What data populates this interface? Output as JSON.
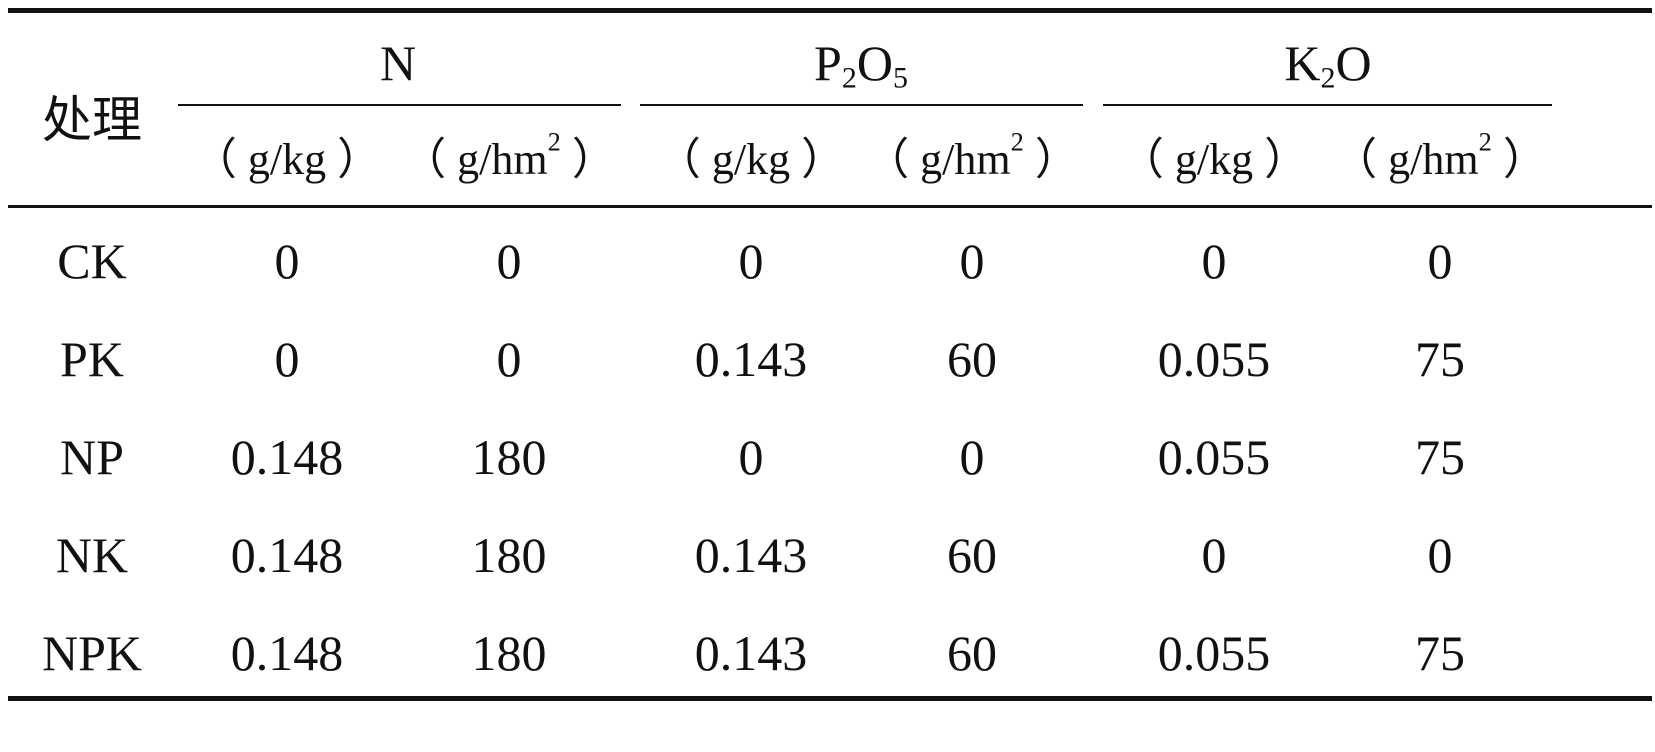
{
  "table": {
    "treatment_header": "处理",
    "groups": [
      {
        "base": "N",
        "sub1": "",
        "mid": "",
        "sub2": ""
      },
      {
        "base": "P",
        "sub1": "2",
        "mid": "O",
        "sub2": "5"
      },
      {
        "base": "K",
        "sub1": "2",
        "mid": "O",
        "sub2": ""
      }
    ],
    "units": {
      "gkg": "（ g/kg ）",
      "ghm_pre": "（ g/hm",
      "ghm_sup": "2",
      "ghm_post": " ）"
    },
    "rows": [
      {
        "label": "CK",
        "values": [
          "0",
          "0",
          "0",
          "0",
          "0",
          "0"
        ]
      },
      {
        "label": "PK",
        "values": [
          "0",
          "0",
          "0.143",
          "60",
          "0.055",
          "75"
        ]
      },
      {
        "label": "NP",
        "values": [
          "0.148",
          "180",
          "0",
          "0",
          "0.055",
          "75"
        ]
      },
      {
        "label": "NK",
        "values": [
          "0.148",
          "180",
          "0.143",
          "60",
          "0",
          "0"
        ]
      },
      {
        "label": "NPK",
        "values": [
          "0.148",
          "180",
          "0.143",
          "60",
          "0.055",
          "75"
        ]
      }
    ]
  }
}
